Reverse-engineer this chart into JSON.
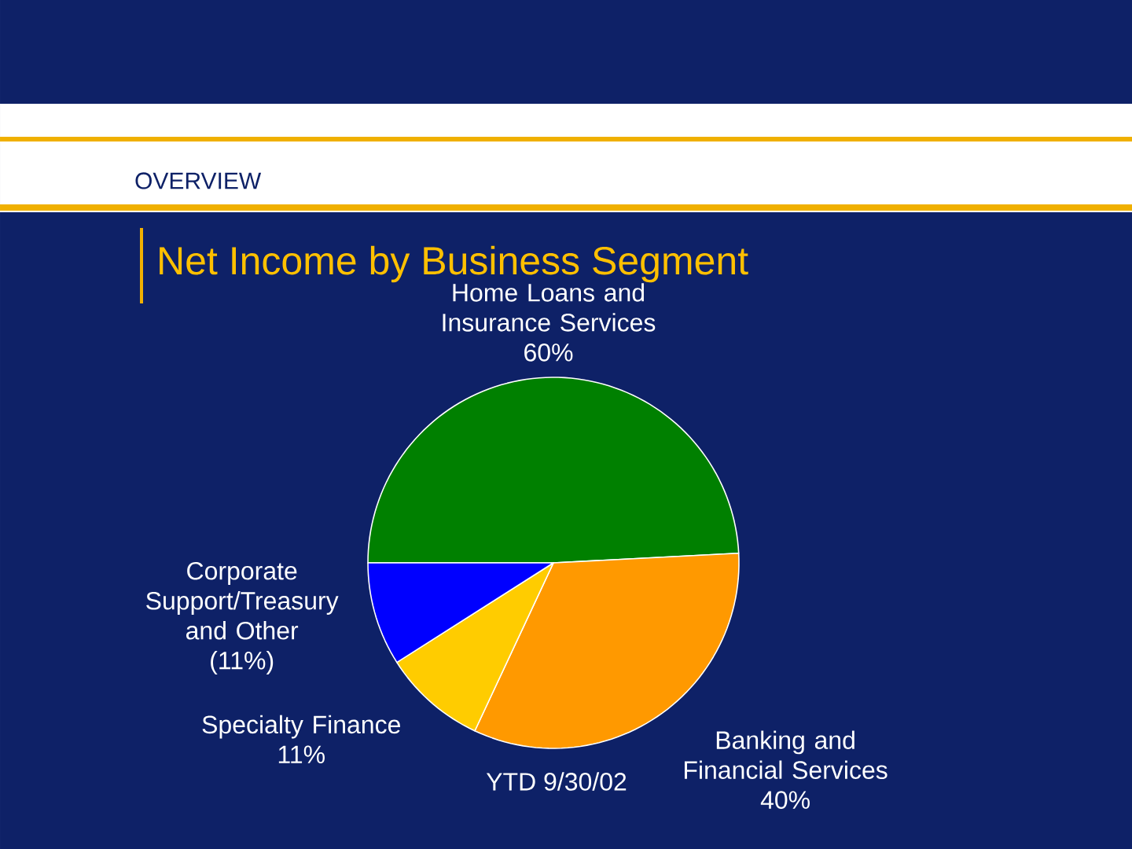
{
  "chart_data": {
    "type": "pie",
    "title": "Net Income by Business Segment",
    "subtitle": "OVERVIEW",
    "categories": [
      "Home Loans and Insurance Services",
      "Banking and Financial Services",
      "Specialty Finance",
      "Corporate Support/Treasury and Other"
    ],
    "values": [
      60,
      40,
      11,
      11
    ],
    "value_labels": [
      "60%",
      "40%",
      "11%",
      "(11%)"
    ],
    "colors": [
      "#008000",
      "#ff9900",
      "#ffcc00",
      "#0000ff"
    ],
    "annotations": [
      "YTD 9/30/02"
    ]
  }
}
